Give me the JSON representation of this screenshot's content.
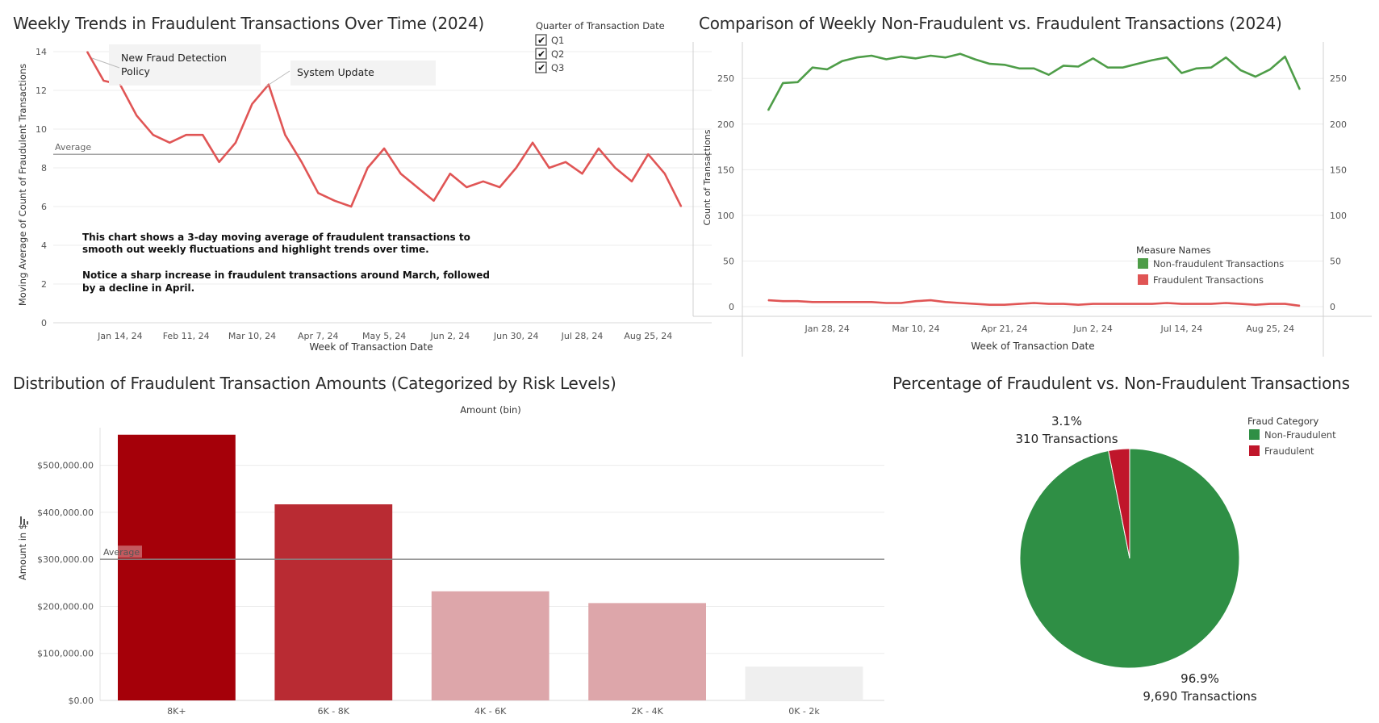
{
  "colors": {
    "fraud_red": "#e05555",
    "nonfraud_green": "#4e9d48",
    "pie_green": "#2f8f45",
    "pie_red": "#c0162b",
    "grid": "#ececec",
    "average_line": "#888888"
  },
  "chart_data": [
    {
      "id": "weekly_trend",
      "type": "line",
      "title": "Weekly Trends in Fraudulent Transactions Over Time (2024)",
      "xlabel": "Week of Transaction Date",
      "ylabel": "Moving Average of Count of Fraudulent Transactions",
      "ylim": [
        0,
        14.5
      ],
      "yticks": [
        "0",
        "2",
        "4",
        "6",
        "8",
        "10",
        "12",
        "14"
      ],
      "xticks": [
        "Jan 14, 24",
        "Feb 11, 24",
        "Mar 10, 24",
        "Apr 7, 24",
        "May 5, 24",
        "Jun 2, 24",
        "Jun 30, 24",
        "Jul 28, 24",
        "Aug 25, 24"
      ],
      "x_start": "Dec 31, 23",
      "x_end": "Sep 15, 24",
      "average": 8.7,
      "average_label": "Average",
      "series": [
        {
          "values": [
            14.0,
            12.5,
            12.3,
            10.7,
            9.7,
            9.3,
            9.7,
            9.7,
            8.3,
            9.3,
            11.3,
            12.3,
            9.7,
            8.3,
            6.7,
            6.3,
            6.0,
            8.0,
            9.0,
            7.7,
            7.0,
            6.3,
            7.7,
            7.0,
            7.3,
            7.0,
            8.0,
            9.3,
            8.0,
            8.3,
            7.7,
            9.0,
            8.0,
            7.3,
            8.7,
            7.7,
            6.0
          ]
        }
      ],
      "annotations": [
        "New Fraud Detection Policy",
        "System Update"
      ],
      "note": [
        "This chart shows a 3-day moving average of fraudulent transactions to",
        "smooth out weekly fluctuations and highlight trends over time.",
        "",
        "Notice a sharp increase in fraudulent transactions around March, followed",
        "by a decline in April."
      ],
      "filter": {
        "title": "Quarter of Transaction Date",
        "items": [
          "Q1",
          "Q2",
          "Q3"
        ],
        "checked": [
          true,
          true,
          true
        ]
      }
    },
    {
      "id": "weekly_comparison",
      "type": "line",
      "title": "Comparison of Weekly Non-Fraudulent vs. Fraudulent Transactions (2024)",
      "xlabel": "Week of Transaction Date",
      "ylabel": "Count of Transactions",
      "ylim": [
        0,
        290
      ],
      "yticks": [
        "0",
        "50",
        "100",
        "150",
        "200",
        "250"
      ],
      "xticks": [
        "Jan 28, 24",
        "Mar 10, 24",
        "Apr 21, 24",
        "Jun 2, 24",
        "Jul 14, 24",
        "Aug 25, 24"
      ],
      "x_start": "Dec 31, 23",
      "x_end": "Sep 15, 24",
      "legend_title": "Measure Names",
      "series": [
        {
          "name": "Non-fraudult Transactions",
          "legend_label": "Non-fraudulent Transactions",
          "values": [
            215,
            245,
            246,
            262,
            260,
            269,
            273,
            275,
            271,
            274,
            272,
            275,
            273,
            277,
            271,
            266,
            265,
            261,
            261,
            254,
            264,
            263,
            272,
            262,
            262,
            266,
            270,
            273,
            256,
            261,
            262,
            273,
            259,
            252,
            260,
            274,
            238
          ]
        },
        {
          "name": "Fraudulent Transactions",
          "legend_label": "Fraudulent Transactions",
          "values": [
            7,
            6,
            6,
            5,
            5,
            5,
            5,
            5,
            4,
            4,
            6,
            7,
            5,
            4,
            3,
            2,
            2,
            3,
            4,
            3,
            3,
            2,
            3,
            3,
            3,
            3,
            3,
            4,
            3,
            3,
            3,
            4,
            3,
            2,
            3,
            3,
            1
          ]
        }
      ]
    },
    {
      "id": "amount_distribution",
      "type": "bar",
      "title": "Distribution of Fraudulent Transaction Amounts (Categorized by Risk Levels)",
      "xlabel": "Amount (bin)",
      "ylabel": "Amount in $",
      "ylim": [
        0,
        580000
      ],
      "yticks": [
        "$0.00",
        "$100,000.00",
        "$200,000.00",
        "$300,000.00",
        "$400,000.00",
        "$500,000.00"
      ],
      "categories": [
        "8K+",
        "6K - 8K",
        "4K - 6K",
        "2K - 4K",
        "0K - 2k"
      ],
      "values": [
        565000,
        417000,
        232000,
        207000,
        72000
      ],
      "bar_colors": [
        "#a50009",
        "#b92b33",
        "#dda6aa",
        "#dda6aa",
        "#efefef"
      ],
      "average": 300000,
      "average_label": "Average"
    },
    {
      "id": "fraud_share",
      "type": "pie",
      "title": "Percentage of Fraudulent vs. Non-Fraudulent Transactions",
      "legend_title": "Fraud Category",
      "slices": [
        {
          "name": "Non-Fraudulent",
          "value": 9690,
          "percent_label": "96.9%",
          "count_label": "9,690 Transactions",
          "color": "#2f8f45"
        },
        {
          "name": "Fraudulent",
          "value": 310,
          "percent_label": "3.1%",
          "count_label": "310 Transactions",
          "color": "#c0162b"
        }
      ]
    }
  ]
}
